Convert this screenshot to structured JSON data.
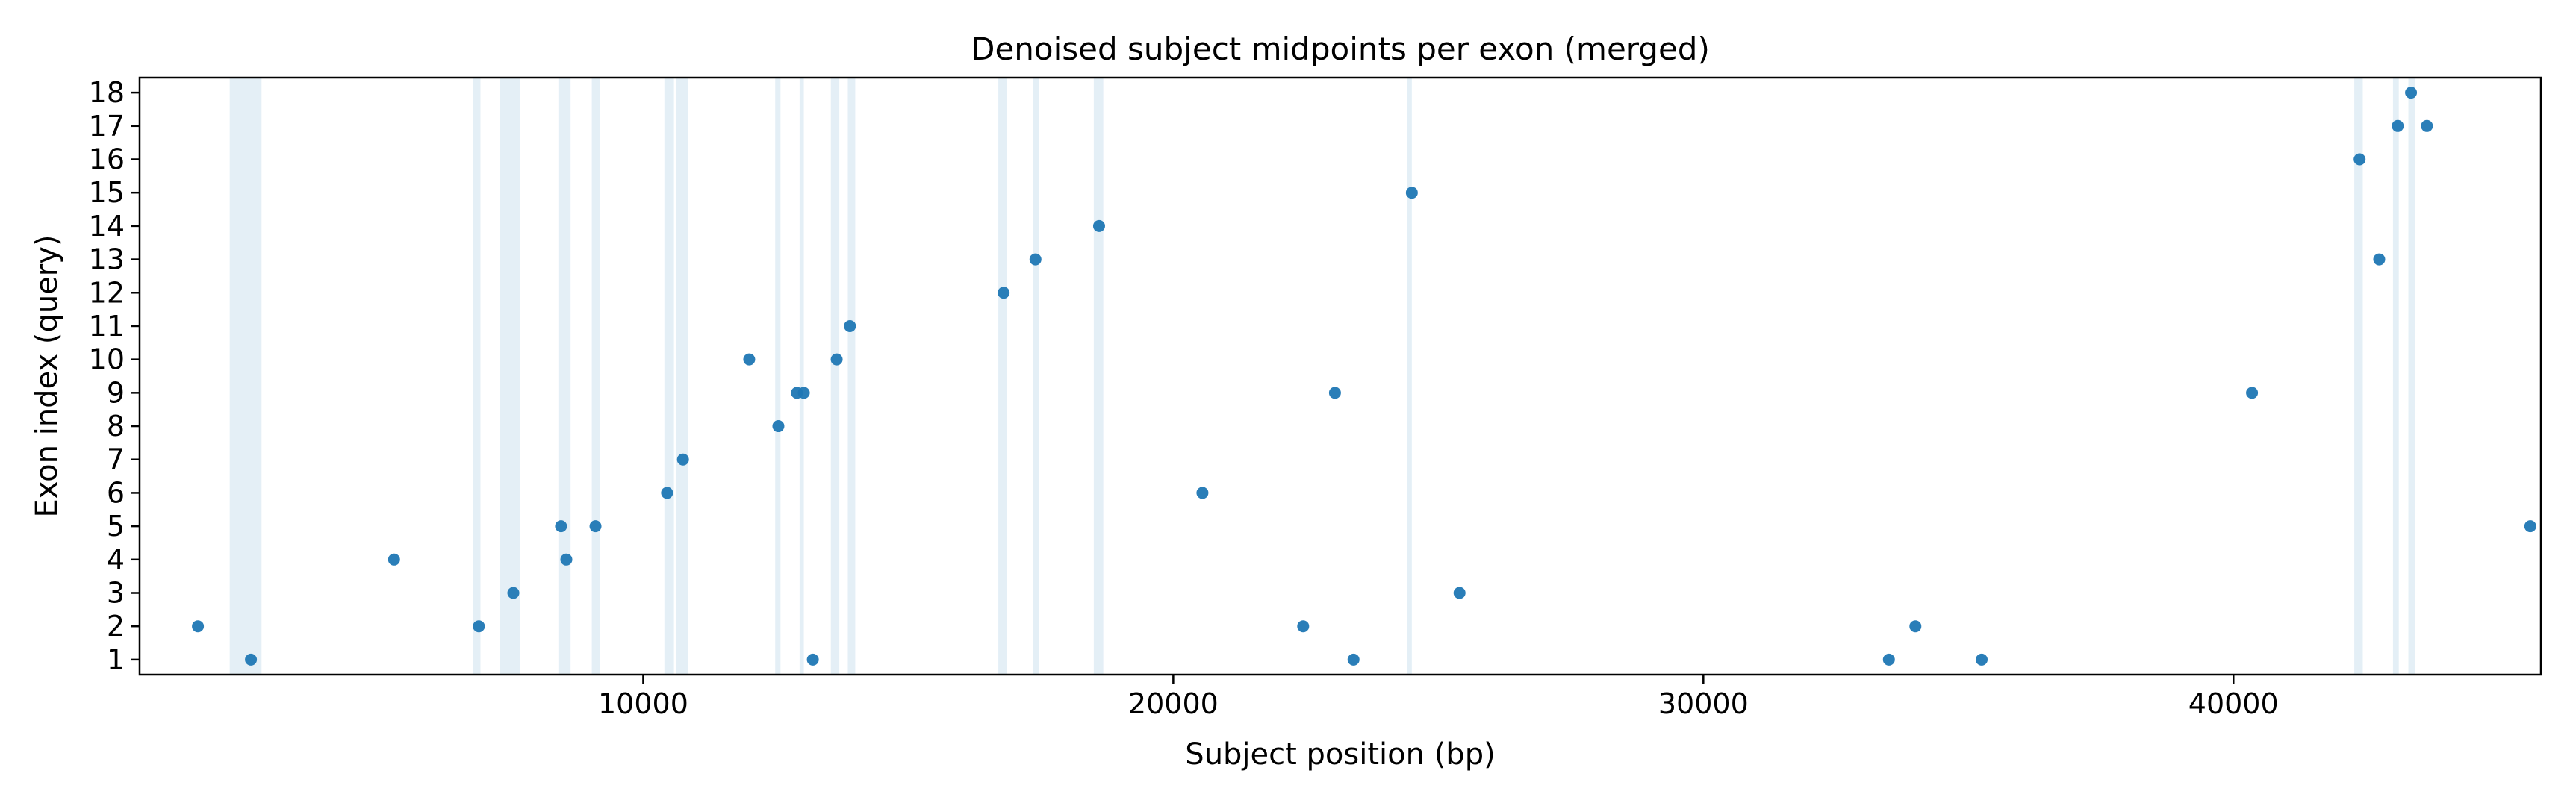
{
  "chart_data": {
    "type": "scatter",
    "title": "Denoised subject midpoints per exon (merged)",
    "xlabel": "Subject position (bp)",
    "ylabel": "Exon index (query)",
    "xlim": [
      500,
      45800
    ],
    "ylim": [
      0.55,
      18.45
    ],
    "x_ticks": [
      10000,
      20000,
      30000,
      40000
    ],
    "x_tick_labels": [
      "10000",
      "20000",
      "30000",
      "40000"
    ],
    "y_ticks": [
      1,
      2,
      3,
      4,
      5,
      6,
      7,
      8,
      9,
      10,
      11,
      12,
      13,
      14,
      15,
      16,
      17,
      18
    ],
    "y_tick_labels": [
      "1",
      "2",
      "3",
      "4",
      "5",
      "6",
      "7",
      "8",
      "9",
      "10",
      "11",
      "12",
      "13",
      "14",
      "15",
      "16",
      "17",
      "18"
    ],
    "grid": false,
    "legend": "none",
    "point_color": "#1f77b4",
    "band_color": "#a6cbe0",
    "highlighted_bands": [
      [
        2200,
        2800
      ],
      [
        6790,
        6930
      ],
      [
        7300,
        7680
      ],
      [
        8400,
        8630
      ],
      [
        9030,
        9180
      ],
      [
        10400,
        10580
      ],
      [
        10620,
        10850
      ],
      [
        12490,
        12590
      ],
      [
        12950,
        13030
      ],
      [
        13540,
        13700
      ],
      [
        13860,
        14000
      ],
      [
        16700,
        16860
      ],
      [
        17350,
        17460
      ],
      [
        18500,
        18680
      ],
      [
        24410,
        24500
      ],
      [
        42280,
        42440
      ],
      [
        43010,
        43120
      ],
      [
        43300,
        43420
      ]
    ],
    "points": [
      {
        "x": 1600,
        "y": 2
      },
      {
        "x": 2600,
        "y": 1
      },
      {
        "x": 5300,
        "y": 4
      },
      {
        "x": 6900,
        "y": 2
      },
      {
        "x": 7550,
        "y": 3
      },
      {
        "x": 8450,
        "y": 5
      },
      {
        "x": 8550,
        "y": 4
      },
      {
        "x": 9100,
        "y": 5
      },
      {
        "x": 10450,
        "y": 6
      },
      {
        "x": 10750,
        "y": 7
      },
      {
        "x": 12000,
        "y": 10
      },
      {
        "x": 12550,
        "y": 8
      },
      {
        "x": 12900,
        "y": 9
      },
      {
        "x": 13030,
        "y": 9
      },
      {
        "x": 13200,
        "y": 1
      },
      {
        "x": 13650,
        "y": 10
      },
      {
        "x": 13900,
        "y": 11
      },
      {
        "x": 16800,
        "y": 12
      },
      {
        "x": 17400,
        "y": 13
      },
      {
        "x": 18600,
        "y": 14
      },
      {
        "x": 20550,
        "y": 6
      },
      {
        "x": 22450,
        "y": 2
      },
      {
        "x": 23050,
        "y": 9
      },
      {
        "x": 23400,
        "y": 1
      },
      {
        "x": 24500,
        "y": 15
      },
      {
        "x": 25400,
        "y": 3
      },
      {
        "x": 33500,
        "y": 1
      },
      {
        "x": 34000,
        "y": 2
      },
      {
        "x": 35250,
        "y": 1
      },
      {
        "x": 40350,
        "y": 9
      },
      {
        "x": 42380,
        "y": 16
      },
      {
        "x": 42750,
        "y": 13
      },
      {
        "x": 43100,
        "y": 17
      },
      {
        "x": 43350,
        "y": 18
      },
      {
        "x": 43650,
        "y": 17
      },
      {
        "x": 45600,
        "y": 5
      }
    ]
  }
}
